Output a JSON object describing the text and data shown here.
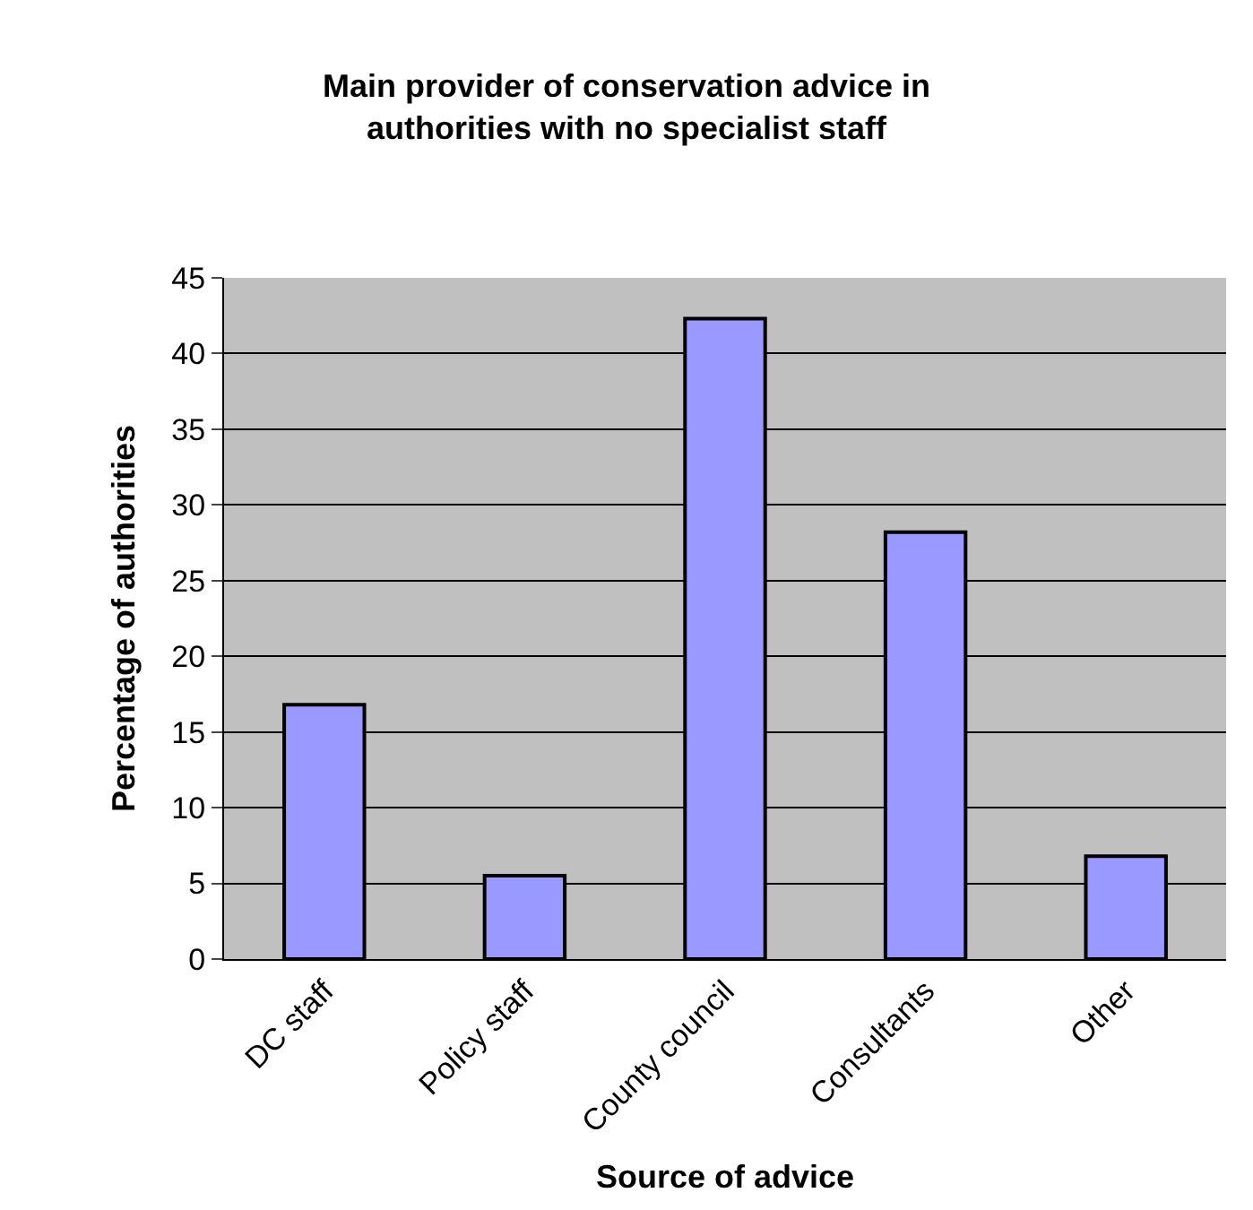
{
  "chart_data": {
    "type": "bar",
    "title": "Main provider of conservation advice in authorities with no specialist staff",
    "xlabel": "Source of advice",
    "ylabel": "Percentage of authorities",
    "categories": [
      "DC staff",
      "Policy staff",
      "County council",
      "Consultants",
      "Other"
    ],
    "values": [
      16.8,
      5.5,
      42.3,
      28.2,
      6.8
    ],
    "color": "#9999ff",
    "ylim": [
      0,
      45
    ],
    "yticks": [
      0,
      5,
      10,
      15,
      20,
      25,
      30,
      35,
      40,
      45
    ],
    "grid": "y"
  }
}
